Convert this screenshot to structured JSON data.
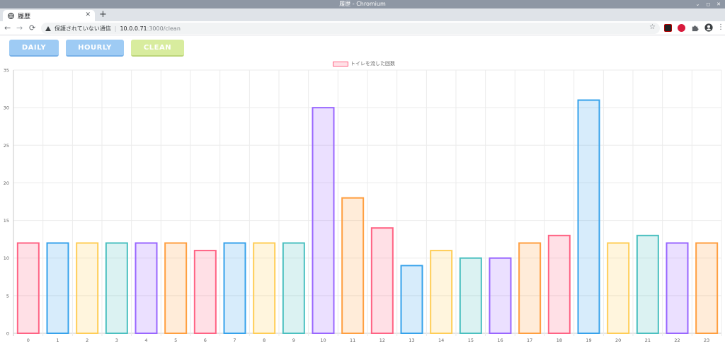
{
  "window": {
    "title": "履歴 - Chromium"
  },
  "window_controls": {
    "minimize": "⌄",
    "maximize": "◻",
    "close": "✕"
  },
  "tab": {
    "title": "履歴",
    "close": "✕"
  },
  "new_tab": "+",
  "nav": {
    "back": "←",
    "forward": "→",
    "reload": "⟳"
  },
  "omnibox": {
    "security": "保護されていない通信",
    "separator": "|",
    "host": "10.0.0.71",
    "path": ":3000/clean"
  },
  "star": "☆",
  "menu": "⋮",
  "extensions": [
    "dark-ext",
    "shield-ext",
    "puzzle-icon",
    "profile-icon"
  ],
  "buttons": [
    {
      "label": "DAILY",
      "color": "#9ecbf4"
    },
    {
      "label": "HOURLY",
      "color": "#9ecbf4"
    },
    {
      "label": "CLEAN",
      "color": "#d8ec9e"
    }
  ],
  "chart_data": {
    "type": "bar",
    "legend": "トイレを流した回数",
    "categories": [
      "0",
      "1",
      "2",
      "3",
      "4",
      "5",
      "6",
      "7",
      "8",
      "9",
      "10",
      "11",
      "12",
      "13",
      "14",
      "15",
      "16",
      "17",
      "18",
      "19",
      "20",
      "21",
      "22",
      "23"
    ],
    "values": [
      12,
      12,
      12,
      12,
      12,
      12,
      11,
      12,
      12,
      12,
      30,
      18,
      14,
      9,
      11,
      10,
      10,
      12,
      13,
      31,
      12,
      13,
      12,
      12
    ],
    "ylim": [
      0,
      35
    ],
    "yticks": [
      "0",
      "5",
      "10",
      "15",
      "20",
      "25",
      "30",
      "35"
    ],
    "grid": true,
    "palette": [
      {
        "stroke": "#ff6384",
        "fill": "rgba(255,99,132,0.2)"
      },
      {
        "stroke": "#36a2eb",
        "fill": "rgba(54,162,235,0.2)"
      },
      {
        "stroke": "#ffcd56",
        "fill": "rgba(255,205,86,0.2)"
      },
      {
        "stroke": "#4bc0c0",
        "fill": "rgba(75,192,192,0.2)"
      },
      {
        "stroke": "#9966ff",
        "fill": "rgba(153,102,255,0.2)"
      },
      {
        "stroke": "#ff9f40",
        "fill": "rgba(255,159,64,0.2)"
      }
    ]
  }
}
